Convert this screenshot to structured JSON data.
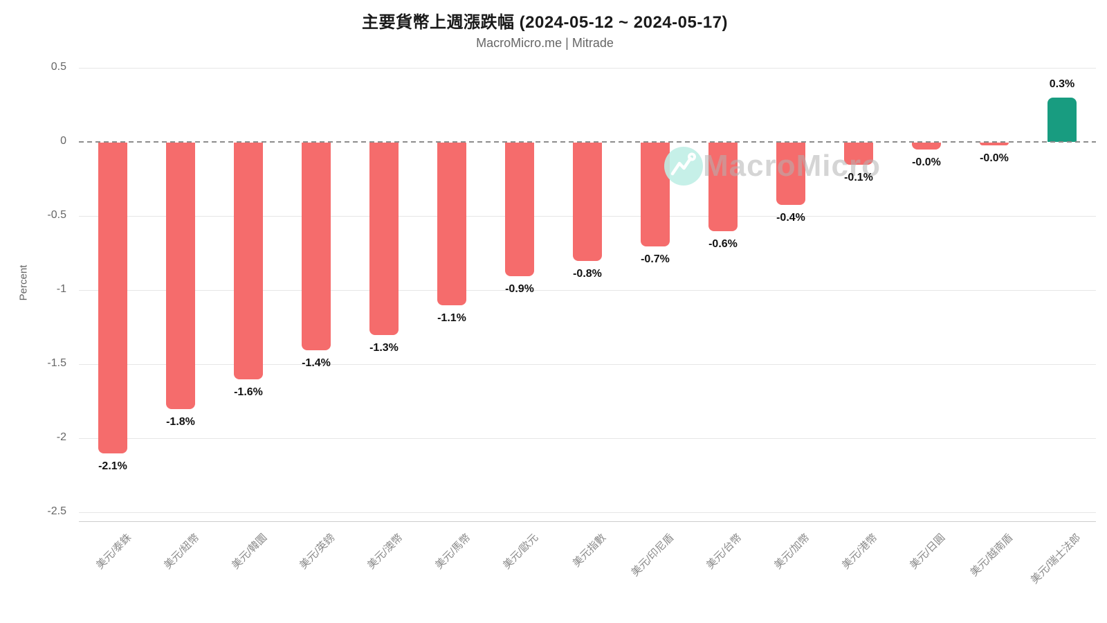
{
  "chart_data": {
    "type": "bar",
    "title": "主要貨幣上週漲跌幅 (2024-05-12 ~ 2024-05-17)",
    "subtitle": "MacroMicro.me | Mitrade",
    "xlabel": "",
    "ylabel": "Percent",
    "categories": [
      "美元/泰銖",
      "美元/紐幣",
      "美元/韓圜",
      "美元/英鎊",
      "美元/澳幣",
      "美元/馬幣",
      "美元/歐元",
      "美元指數",
      "美元/印尼盾",
      "美元/台幣",
      "美元/加幣",
      "美元/港幣",
      "美元/日圓",
      "美元/越南盾",
      "美元/瑞士法郎"
    ],
    "values": [
      -2.1,
      -1.8,
      -1.6,
      -1.4,
      -1.3,
      -1.1,
      -0.9,
      -0.8,
      -0.7,
      -0.6,
      -0.42,
      -0.15,
      -0.045,
      -0.02,
      0.3
    ],
    "value_labels": [
      "-2.1%",
      "-1.8%",
      "-1.6%",
      "-1.4%",
      "-1.3%",
      "-1.1%",
      "-0.9%",
      "-0.8%",
      "-0.7%",
      "-0.6%",
      "-0.4%",
      "-0.1%",
      "-0.0%",
      "-0.0%",
      "0.3%"
    ],
    "yticks": [
      {
        "value": 0.5,
        "label": "0.5"
      },
      {
        "value": 0,
        "label": "0"
      },
      {
        "value": -0.5,
        "label": "-0.5"
      },
      {
        "value": -1,
        "label": "-1"
      },
      {
        "value": -1.5,
        "label": "-1.5"
      },
      {
        "value": -2,
        "label": "-2"
      },
      {
        "value": -2.5,
        "label": "-2.5"
      }
    ],
    "ylim": [
      -2.56,
      0.55
    ],
    "grid": true,
    "legend": "none",
    "zero_line_style": "dashed",
    "colors": {
      "negative": "#F56C6C",
      "positive": "#189C80"
    }
  },
  "watermark": {
    "text": "MacroMicro"
  }
}
